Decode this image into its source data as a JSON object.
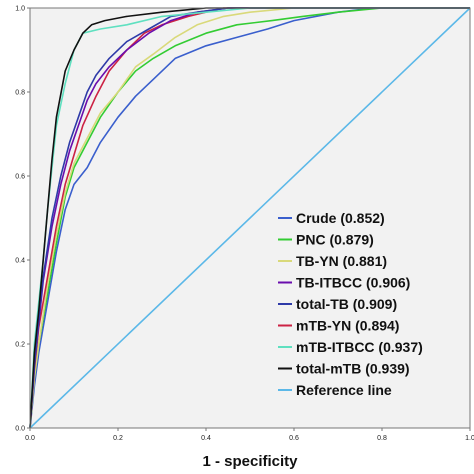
{
  "chart_data": {
    "type": "line",
    "xlabel": "1 - specificity",
    "ylabel": "",
    "xlim": [
      0,
      1
    ],
    "ylim": [
      0,
      1
    ],
    "x_ticks": [
      "0.0",
      "0.2",
      "0.4",
      "0.6",
      "0.8",
      "1.0"
    ],
    "y_ticks": [
      "0.0",
      "0.2",
      "0.4",
      "0.6",
      "0.8",
      "1.0"
    ],
    "legend_position": "bottom-right",
    "grid": false,
    "background_color": "#f2f2f2",
    "series": [
      {
        "name": "Crude (0.852)",
        "color": "#3a5fcd",
        "points": [
          [
            0,
            0
          ],
          [
            0.01,
            0.1
          ],
          [
            0.02,
            0.18
          ],
          [
            0.04,
            0.3
          ],
          [
            0.06,
            0.42
          ],
          [
            0.08,
            0.52
          ],
          [
            0.1,
            0.58
          ],
          [
            0.13,
            0.62
          ],
          [
            0.16,
            0.68
          ],
          [
            0.2,
            0.74
          ],
          [
            0.24,
            0.79
          ],
          [
            0.28,
            0.83
          ],
          [
            0.33,
            0.88
          ],
          [
            0.4,
            0.91
          ],
          [
            0.47,
            0.93
          ],
          [
            0.54,
            0.95
          ],
          [
            0.6,
            0.97
          ],
          [
            0.7,
            0.99
          ],
          [
            0.78,
            1
          ],
          [
            1,
            1
          ]
        ]
      },
      {
        "name": "PNC (0.879)",
        "color": "#33cc33",
        "points": [
          [
            0,
            0
          ],
          [
            0.01,
            0.12
          ],
          [
            0.02,
            0.2
          ],
          [
            0.04,
            0.32
          ],
          [
            0.06,
            0.44
          ],
          [
            0.08,
            0.55
          ],
          [
            0.1,
            0.62
          ],
          [
            0.13,
            0.68
          ],
          [
            0.16,
            0.74
          ],
          [
            0.2,
            0.8
          ],
          [
            0.24,
            0.85
          ],
          [
            0.28,
            0.88
          ],
          [
            0.33,
            0.91
          ],
          [
            0.4,
            0.94
          ],
          [
            0.47,
            0.96
          ],
          [
            0.55,
            0.97
          ],
          [
            0.62,
            0.98
          ],
          [
            0.7,
            0.99
          ],
          [
            0.8,
            1
          ],
          [
            1,
            1
          ]
        ]
      },
      {
        "name": "TB-YN (0.881)",
        "color": "#d9d97a",
        "points": [
          [
            0,
            0
          ],
          [
            0.01,
            0.12
          ],
          [
            0.02,
            0.2
          ],
          [
            0.04,
            0.34
          ],
          [
            0.06,
            0.46
          ],
          [
            0.08,
            0.56
          ],
          [
            0.1,
            0.63
          ],
          [
            0.13,
            0.69
          ],
          [
            0.16,
            0.75
          ],
          [
            0.2,
            0.8
          ],
          [
            0.24,
            0.86
          ],
          [
            0.28,
            0.89
          ],
          [
            0.33,
            0.93
          ],
          [
            0.38,
            0.96
          ],
          [
            0.44,
            0.98
          ],
          [
            0.5,
            0.99
          ],
          [
            0.6,
            1
          ],
          [
            1,
            1
          ]
        ]
      },
      {
        "name": "TB-ITBCC (0.906)",
        "color": "#6a0dad",
        "points": [
          [
            0,
            0
          ],
          [
            0.01,
            0.15
          ],
          [
            0.02,
            0.25
          ],
          [
            0.03,
            0.35
          ],
          [
            0.05,
            0.48
          ],
          [
            0.07,
            0.58
          ],
          [
            0.09,
            0.66
          ],
          [
            0.11,
            0.72
          ],
          [
            0.13,
            0.78
          ],
          [
            0.15,
            0.82
          ],
          [
            0.18,
            0.86
          ],
          [
            0.22,
            0.9
          ],
          [
            0.27,
            0.94
          ],
          [
            0.32,
            0.97
          ],
          [
            0.38,
            0.99
          ],
          [
            0.45,
            1
          ],
          [
            1,
            1
          ]
        ]
      },
      {
        "name": "total-TB (0.909)",
        "color": "#2e3aa8",
        "points": [
          [
            0,
            0
          ],
          [
            0.01,
            0.15
          ],
          [
            0.02,
            0.26
          ],
          [
            0.03,
            0.36
          ],
          [
            0.05,
            0.5
          ],
          [
            0.07,
            0.6
          ],
          [
            0.09,
            0.68
          ],
          [
            0.11,
            0.74
          ],
          [
            0.13,
            0.8
          ],
          [
            0.15,
            0.84
          ],
          [
            0.18,
            0.88
          ],
          [
            0.22,
            0.92
          ],
          [
            0.27,
            0.95
          ],
          [
            0.32,
            0.98
          ],
          [
            0.38,
            0.99
          ],
          [
            0.45,
            1
          ],
          [
            1,
            1
          ]
        ]
      },
      {
        "name": "mTB-YN (0.894)",
        "color": "#cc2244",
        "points": [
          [
            0,
            0
          ],
          [
            0.01,
            0.14
          ],
          [
            0.02,
            0.24
          ],
          [
            0.04,
            0.36
          ],
          [
            0.06,
            0.48
          ],
          [
            0.08,
            0.58
          ],
          [
            0.1,
            0.65
          ],
          [
            0.12,
            0.72
          ],
          [
            0.15,
            0.79
          ],
          [
            0.18,
            0.85
          ],
          [
            0.22,
            0.9
          ],
          [
            0.26,
            0.94
          ],
          [
            0.3,
            0.96
          ],
          [
            0.36,
            0.98
          ],
          [
            0.44,
            1
          ],
          [
            1,
            1
          ]
        ]
      },
      {
        "name": "mTB-ITBCC (0.937)",
        "color": "#5fe0c0",
        "points": [
          [
            0,
            0
          ],
          [
            0.01,
            0.2
          ],
          [
            0.02,
            0.3
          ],
          [
            0.03,
            0.4
          ],
          [
            0.04,
            0.52
          ],
          [
            0.05,
            0.62
          ],
          [
            0.06,
            0.72
          ],
          [
            0.08,
            0.82
          ],
          [
            0.1,
            0.9
          ],
          [
            0.12,
            0.94
          ],
          [
            0.16,
            0.95
          ],
          [
            0.22,
            0.96
          ],
          [
            0.3,
            0.98
          ],
          [
            0.4,
            0.99
          ],
          [
            0.5,
            1
          ],
          [
            1,
            1
          ]
        ]
      },
      {
        "name": "total-mTB (0.939)",
        "color": "#111111",
        "points": [
          [
            0,
            0
          ],
          [
            0.01,
            0.18
          ],
          [
            0.02,
            0.28
          ],
          [
            0.03,
            0.4
          ],
          [
            0.04,
            0.52
          ],
          [
            0.05,
            0.64
          ],
          [
            0.06,
            0.74
          ],
          [
            0.08,
            0.85
          ],
          [
            0.1,
            0.9
          ],
          [
            0.12,
            0.94
          ],
          [
            0.14,
            0.96
          ],
          [
            0.17,
            0.97
          ],
          [
            0.22,
            0.98
          ],
          [
            0.3,
            0.99
          ],
          [
            0.4,
            1
          ],
          [
            1,
            1
          ]
        ]
      },
      {
        "name": "Reference line",
        "color": "#5bb8e8",
        "points": [
          [
            0,
            0
          ],
          [
            1,
            1
          ]
        ]
      }
    ]
  }
}
